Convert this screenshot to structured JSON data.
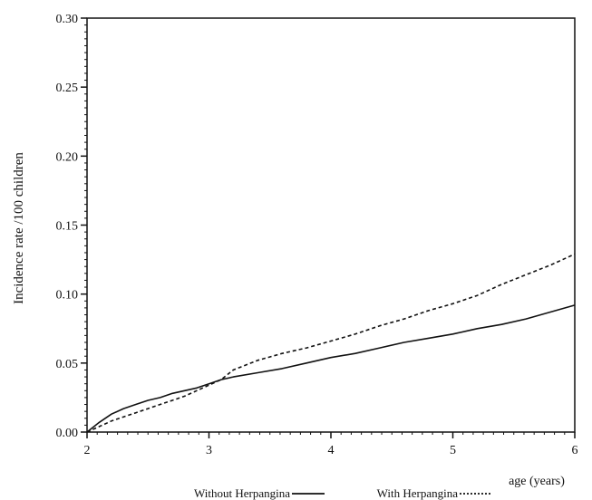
{
  "chart_data": {
    "type": "line",
    "title": "",
    "xlabel": "age (years)",
    "ylabel": "Incidence rate /100 children",
    "xlim": [
      2,
      6
    ],
    "ylim": [
      0,
      0.3
    ],
    "x_ticks": [
      "2",
      "3",
      "4",
      "5",
      "6"
    ],
    "y_ticks": [
      "0.00",
      "0.05",
      "0.10",
      "0.15",
      "0.20",
      "0.25",
      "0.30"
    ],
    "grid": false,
    "legend_position": "bottom",
    "series": [
      {
        "name": "Without Herpangina",
        "style": "solid",
        "color": "#111111",
        "x": [
          2.0,
          2.1,
          2.2,
          2.3,
          2.4,
          2.5,
          2.6,
          2.7,
          2.8,
          2.9,
          3.0,
          3.1,
          3.2,
          3.4,
          3.6,
          3.8,
          4.0,
          4.2,
          4.4,
          4.6,
          4.8,
          5.0,
          5.2,
          5.4,
          5.6,
          5.8,
          6.0
        ],
        "y": [
          0.0,
          0.007,
          0.013,
          0.017,
          0.02,
          0.023,
          0.025,
          0.028,
          0.03,
          0.032,
          0.035,
          0.038,
          0.04,
          0.043,
          0.046,
          0.05,
          0.054,
          0.057,
          0.061,
          0.065,
          0.068,
          0.071,
          0.075,
          0.078,
          0.082,
          0.087,
          0.092
        ]
      },
      {
        "name": "With Herpangina",
        "style": "dashed",
        "color": "#111111",
        "x": [
          2.0,
          2.1,
          2.2,
          2.3,
          2.4,
          2.5,
          2.6,
          2.7,
          2.8,
          2.9,
          3.0,
          3.1,
          3.2,
          3.4,
          3.6,
          3.8,
          4.0,
          4.2,
          4.4,
          4.6,
          4.8,
          5.0,
          5.2,
          5.4,
          5.6,
          5.8,
          6.0
        ],
        "y": [
          0.0,
          0.004,
          0.008,
          0.011,
          0.014,
          0.017,
          0.02,
          0.023,
          0.026,
          0.03,
          0.034,
          0.038,
          0.045,
          0.052,
          0.057,
          0.061,
          0.066,
          0.071,
          0.077,
          0.082,
          0.088,
          0.093,
          0.099,
          0.107,
          0.114,
          0.121,
          0.129
        ]
      }
    ]
  }
}
